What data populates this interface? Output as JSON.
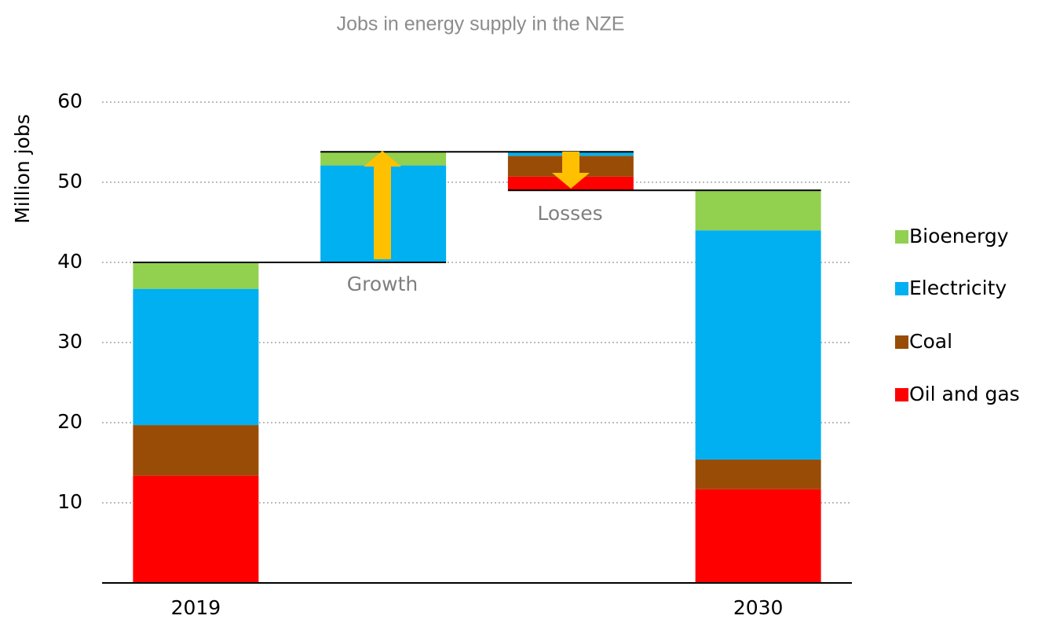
{
  "chart_data": {
    "type": "waterfall",
    "title": "Jobs in energy supply in the NZE",
    "y_label": "Million jobs",
    "categories": [
      "2019",
      null,
      null,
      "2030"
    ],
    "measure": [
      "total",
      "relative",
      "relative",
      "total"
    ],
    "series": [
      {
        "name": "Oil and gas",
        "color": "#ff0000",
        "values": [
          13.4,
          0,
          -1.7,
          11.7
        ]
      },
      {
        "name": "Coal",
        "color": "#994c06",
        "values": [
          6.3,
          0,
          -2.6,
          3.7
        ]
      },
      {
        "name": "Electricity",
        "color": "#00b0f0",
        "values": [
          17.0,
          12.1,
          -0.5,
          28.6
        ]
      },
      {
        "name": "Bioenergy",
        "color": "#92d050",
        "values": [
          3.3,
          1.7,
          0,
          4.9
        ]
      }
    ],
    "annotations": [
      "Growth",
      "Losses"
    ],
    "ylim": [
      0,
      60
    ],
    "yticks": [
      10,
      20,
      30,
      40,
      50,
      60
    ],
    "grid": true,
    "legend": "right"
  }
}
